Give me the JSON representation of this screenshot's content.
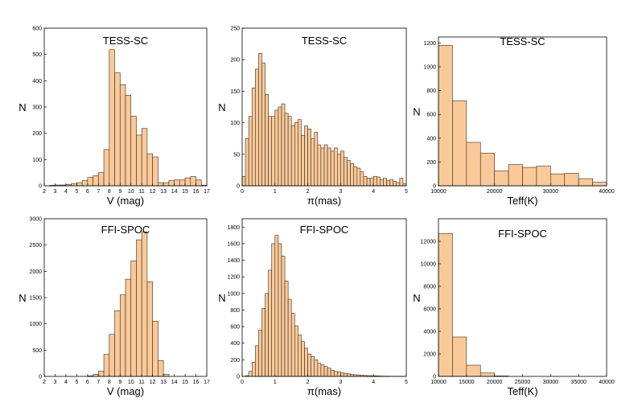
{
  "colors": {
    "bar_fill": "#f9c99a",
    "bar_stroke": "#3a2a1a",
    "axis": "#000000"
  },
  "chart_data": [
    {
      "type": "bar",
      "title": "TESS-SC",
      "xlabel": "V (mag)",
      "ylabel": "N",
      "xlim": [
        2,
        17
      ],
      "ylim": [
        0,
        600
      ],
      "xticks": [
        "2",
        "3",
        "4",
        "5",
        "6",
        "7",
        "8",
        "9",
        "10",
        "11",
        "12",
        "13",
        "14",
        "15",
        "16",
        "17"
      ],
      "yticks": [
        "0",
        "100",
        "200",
        "300",
        "400",
        "500",
        "600"
      ],
      "bin_width": 0.5,
      "bin_starts": [
        2.5,
        3,
        3.5,
        4,
        4.5,
        5,
        5.5,
        6,
        6.5,
        7,
        7.5,
        8,
        8.5,
        9,
        9.5,
        10,
        10.5,
        11,
        11.5,
        12,
        12.5,
        13,
        13.5,
        14,
        14.5,
        15,
        15.5,
        16,
        16.5
      ],
      "values": [
        2,
        3,
        3,
        5,
        8,
        12,
        20,
        32,
        38,
        50,
        138,
        518,
        430,
        385,
        345,
        265,
        193,
        218,
        122,
        110,
        12,
        12,
        20,
        22,
        22,
        30,
        35,
        22,
        2
      ]
    },
    {
      "type": "bar",
      "title": "TESS-SC",
      "xlabel": "π(mas)",
      "ylabel": "N",
      "xlim": [
        0,
        5
      ],
      "ylim": [
        0,
        250
      ],
      "xticks": [
        "0",
        "1",
        "2",
        "3",
        "4",
        "5"
      ],
      "yticks": [
        "0",
        "50",
        "100",
        "150",
        "200",
        "250"
      ],
      "bin_width": 0.1,
      "bin_starts": [
        0,
        0.1,
        0.2,
        0.3,
        0.4,
        0.5,
        0.6,
        0.7,
        0.8,
        0.9,
        1,
        1.1,
        1.2,
        1.3,
        1.4,
        1.5,
        1.6,
        1.7,
        1.8,
        1.9,
        2,
        2.1,
        2.2,
        2.3,
        2.4,
        2.5,
        2.6,
        2.7,
        2.8,
        2.9,
        3,
        3.1,
        3.2,
        3.3,
        3.4,
        3.5,
        3.6,
        3.7,
        3.8,
        3.9,
        4,
        4.1,
        4.2,
        4.3,
        4.4,
        4.5,
        4.6,
        4.7,
        4.8,
        4.9
      ],
      "values": [
        15,
        75,
        110,
        155,
        185,
        210,
        195,
        145,
        110,
        110,
        120,
        125,
        130,
        115,
        110,
        95,
        100,
        105,
        80,
        95,
        90,
        75,
        85,
        65,
        60,
        65,
        60,
        55,
        60,
        50,
        55,
        45,
        40,
        35,
        30,
        28,
        22,
        15,
        12,
        12,
        15,
        14,
        10,
        12,
        8,
        10,
        7,
        5,
        12,
        3
      ]
    },
    {
      "type": "bar",
      "title": "TESS-SC",
      "xlabel": "Teff(K)",
      "ylabel": "N",
      "xlim": [
        10000,
        40000
      ],
      "ylim": [
        0,
        1250
      ],
      "xticks": [
        "10000",
        "20000",
        "30000",
        "40000"
      ],
      "yticks": [
        "0",
        "200",
        "400",
        "600",
        "800",
        "1000",
        "1200"
      ],
      "bin_width": 2500,
      "bin_starts": [
        10000,
        12500,
        15000,
        17500,
        20000,
        22500,
        25000,
        27500,
        30000,
        32500,
        35000,
        37500
      ],
      "values": [
        1180,
        715,
        365,
        275,
        125,
        178,
        155,
        165,
        100,
        105,
        60,
        30
      ]
    },
    {
      "type": "bar",
      "title": "FFI-SPOC",
      "xlabel": "V (mag)",
      "ylabel": "N",
      "xlim": [
        2,
        17
      ],
      "ylim": [
        0,
        3000
      ],
      "xticks": [
        "2",
        "3",
        "4",
        "5",
        "6",
        "7",
        "8",
        "9",
        "10",
        "11",
        "12",
        "13",
        "14",
        "15",
        "16",
        "17"
      ],
      "yticks": [
        "0",
        "500",
        "1000",
        "1500",
        "2000",
        "2500",
        "3000"
      ],
      "bin_width": 0.5,
      "bin_starts": [
        6,
        6.5,
        7,
        7.5,
        8,
        8.5,
        9,
        9.5,
        10,
        10.5,
        11,
        11.5,
        12,
        12.5,
        13
      ],
      "values": [
        10,
        40,
        100,
        420,
        800,
        1250,
        1550,
        1850,
        2200,
        2600,
        2750,
        1800,
        1050,
        300,
        40
      ]
    },
    {
      "type": "bar",
      "title": "FFI-SPOC",
      "xlabel": "π(mas)",
      "ylabel": "N",
      "xlim": [
        0,
        5
      ],
      "ylim": [
        0,
        1900
      ],
      "xticks": [
        "0",
        "1",
        "2",
        "3",
        "4",
        "5"
      ],
      "yticks": [
        "0",
        "200",
        "400",
        "600",
        "800",
        "1000",
        "1200",
        "1400",
        "1600",
        "1800"
      ],
      "bin_width": 0.1,
      "bin_starts": [
        0.1,
        0.2,
        0.3,
        0.4,
        0.5,
        0.6,
        0.7,
        0.8,
        0.9,
        1,
        1.1,
        1.2,
        1.3,
        1.4,
        1.5,
        1.6,
        1.7,
        1.8,
        1.9,
        2,
        2.1,
        2.2,
        2.3,
        2.4,
        2.5,
        2.6,
        2.7,
        2.8,
        2.9,
        3,
        3.1,
        3.2,
        3.3,
        3.4,
        3.5,
        3.6,
        3.7,
        3.8,
        3.9,
        4,
        4.1,
        4.2,
        4.3,
        4.4,
        4.5,
        4.6,
        4.7,
        4.8,
        4.9
      ],
      "values": [
        10,
        60,
        170,
        370,
        560,
        820,
        1000,
        1280,
        1600,
        1700,
        1600,
        1450,
        1150,
        930,
        760,
        610,
        500,
        420,
        340,
        270,
        240,
        200,
        160,
        140,
        120,
        100,
        75,
        60,
        55,
        42,
        38,
        30,
        24,
        20,
        17,
        14,
        11,
        9,
        8,
        7,
        5,
        4,
        3,
        3,
        2,
        2,
        1,
        1,
        1
      ]
    },
    {
      "type": "bar",
      "title": "FFI-SPOC",
      "xlabel": "Teff(K)",
      "ylabel": "N",
      "xlim": [
        10000,
        40000
      ],
      "ylim": [
        0,
        14000
      ],
      "xticks": [
        "10000",
        "15000",
        "20000",
        "25000",
        "30000",
        "35000",
        "40000"
      ],
      "yticks": [
        "0",
        "2000",
        "4000",
        "6000",
        "8000",
        "10000",
        "12000"
      ],
      "bin_width": 2500,
      "bin_starts": [
        10000,
        12500,
        15000,
        17500,
        20000
      ],
      "values": [
        12700,
        3500,
        1000,
        300,
        40
      ]
    }
  ]
}
